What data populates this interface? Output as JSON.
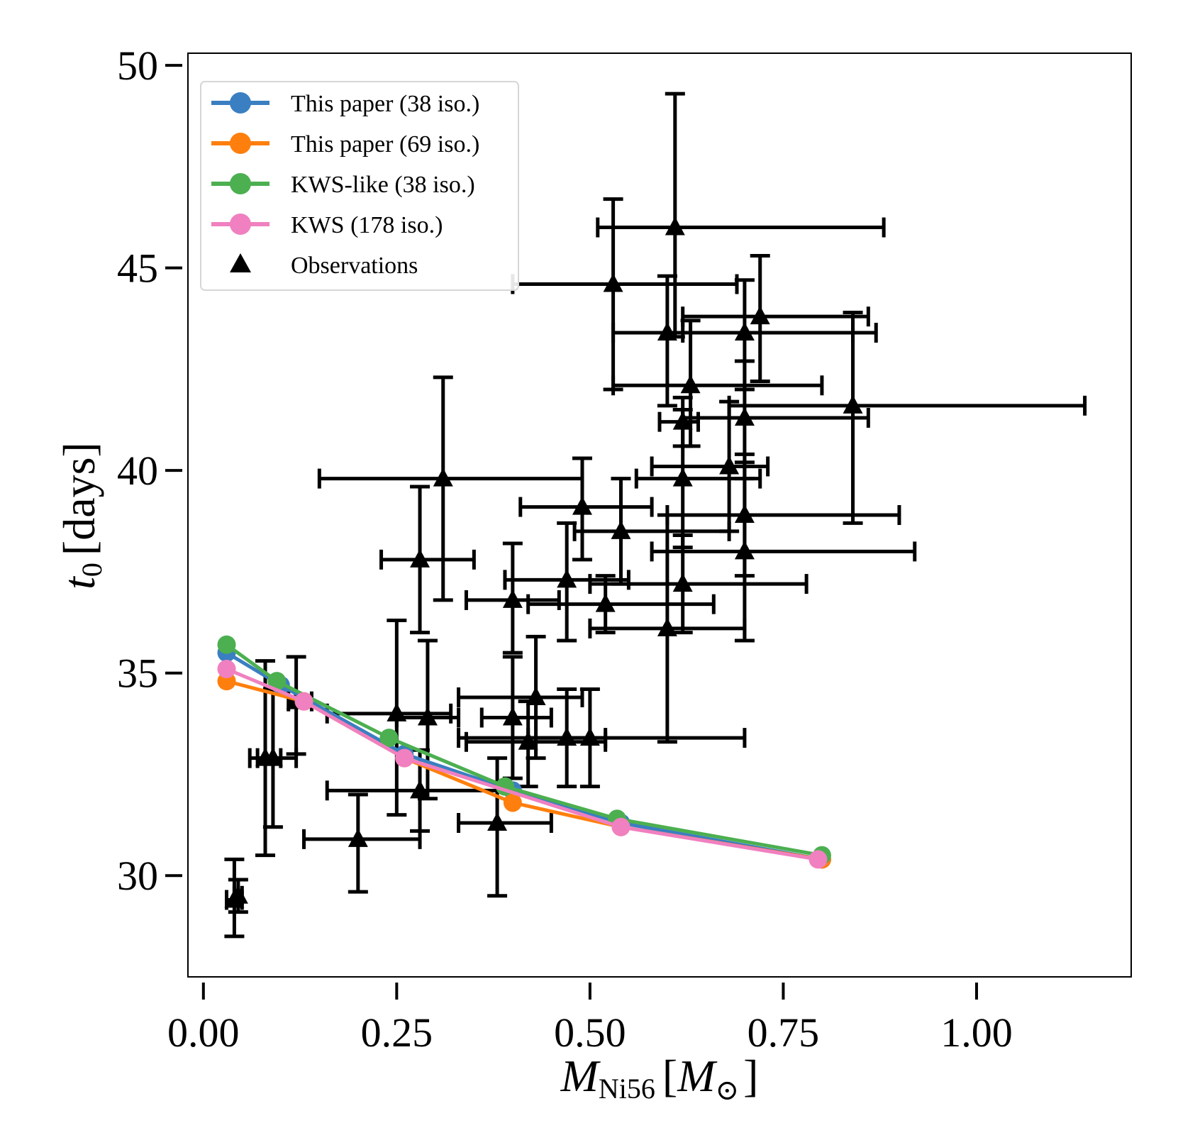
{
  "chart_data": {
    "type": "scatter",
    "xlabel": {
      "main": "M",
      "sub": "Ni56",
      "unit_main": "M",
      "unit_sub": "⊙"
    },
    "ylabel": {
      "main": "t",
      "sub": "0",
      "unit": "[days]"
    },
    "xlim": [
      -0.02,
      1.2
    ],
    "ylim": [
      27.5,
      50.3
    ],
    "xticks": [
      0.0,
      0.25,
      0.5,
      0.75,
      1.0
    ],
    "xtick_labels": [
      "0.00",
      "0.25",
      "0.50",
      "0.75",
      "1.00"
    ],
    "yticks": [
      30,
      35,
      40,
      45,
      50
    ],
    "ytick_labels": [
      "30",
      "35",
      "40",
      "45",
      "50"
    ],
    "legend_position": "top-left",
    "series": [
      {
        "name": "This paper (38 iso.)",
        "label_main": "This paper",
        "label_paren": "(38 iso.)",
        "color": "#3a7fc1",
        "x": [
          0.03,
          0.1,
          0.26,
          0.4,
          0.54,
          0.8
        ],
        "y": [
          35.5,
          34.7,
          33.0,
          32.1,
          31.3,
          30.4
        ]
      },
      {
        "name": "This paper (69 iso.)",
        "label_main": "This paper",
        "label_paren": "(69 iso.)",
        "color": "#ff7f0e",
        "x": [
          0.03,
          0.13,
          0.26,
          0.4,
          0.54,
          0.8
        ],
        "y": [
          34.8,
          34.3,
          32.9,
          31.8,
          31.2,
          30.4
        ]
      },
      {
        "name": "KWS-like (38 iso.)",
        "label_main": "KWS-like",
        "label_paren": "(38 iso.)",
        "color": "#4caf50",
        "x": [
          0.03,
          0.095,
          0.24,
          0.39,
          0.535,
          0.8
        ],
        "y": [
          35.7,
          34.8,
          33.4,
          32.2,
          31.4,
          30.5
        ]
      },
      {
        "name": "KWS (178 iso.)",
        "label_main": "KWS",
        "label_paren": "(178 iso.)",
        "color": "#f080c0",
        "x": [
          0.03,
          0.13,
          0.26,
          0.54,
          0.795
        ],
        "y": [
          35.1,
          34.3,
          32.9,
          31.2,
          30.4
        ]
      }
    ],
    "observations": {
      "name": "Observations",
      "label_main": "Observations",
      "label_paren": "",
      "color": "#000000",
      "marker": "triangle",
      "points": [
        {
          "x": 0.61,
          "y": 46.0,
          "xerr": [
            0.1,
            0.27
          ],
          "yerr": [
            2.7,
            3.3
          ]
        },
        {
          "x": 0.53,
          "y": 44.6,
          "xerr": [
            0.13,
            0.16
          ],
          "yerr": [
            2.6,
            2.1
          ]
        },
        {
          "x": 0.72,
          "y": 43.8,
          "xerr": [
            0.1,
            0.14
          ],
          "yerr": [
            1.6,
            1.5
          ]
        },
        {
          "x": 0.6,
          "y": 43.4,
          "xerr": [
            0.07,
            0.27
          ],
          "yerr": [
            1.8,
            1.4
          ]
        },
        {
          "x": 0.7,
          "y": 43.4,
          "xerr": [
            0.08,
            0.14
          ],
          "yerr": [
            1.4,
            1.3
          ]
        },
        {
          "x": 0.63,
          "y": 42.1,
          "xerr": [
            0.1,
            0.17
          ],
          "yerr": [
            1.5,
            1.6
          ]
        },
        {
          "x": 0.84,
          "y": 41.6,
          "xerr": [
            0.16,
            0.3
          ],
          "yerr": [
            2.9,
            2.3
          ]
        },
        {
          "x": 0.7,
          "y": 41.3,
          "xerr": [
            0.08,
            0.16
          ],
          "yerr": [
            1.5,
            1.4
          ]
        },
        {
          "x": 0.62,
          "y": 41.2,
          "xerr": [
            0.03,
            0.02
          ],
          "yerr": [
            0.6,
            0.6
          ]
        },
        {
          "x": 0.31,
          "y": 39.8,
          "xerr": [
            0.16,
            0.18
          ],
          "yerr": [
            3.0,
            2.5
          ]
        },
        {
          "x": 0.62,
          "y": 39.8,
          "xerr": [
            0.06,
            0.1
          ],
          "yerr": [
            1.7,
            1.7
          ]
        },
        {
          "x": 0.68,
          "y": 40.1,
          "xerr": [
            0.1,
            0.05
          ],
          "yerr": [
            1.6,
            1.6
          ]
        },
        {
          "x": 0.49,
          "y": 39.1,
          "xerr": [
            0.08,
            0.09
          ],
          "yerr": [
            1.3,
            1.2
          ]
        },
        {
          "x": 0.7,
          "y": 38.9,
          "xerr": [
            0.1,
            0.2
          ],
          "yerr": [
            1.5,
            1.5
          ]
        },
        {
          "x": 0.54,
          "y": 38.5,
          "xerr": [
            0.06,
            0.14
          ],
          "yerr": [
            1.3,
            1.3
          ]
        },
        {
          "x": 0.28,
          "y": 37.8,
          "xerr": [
            0.05,
            0.07
          ],
          "yerr": [
            1.8,
            1.8
          ]
        },
        {
          "x": 0.7,
          "y": 38.0,
          "xerr": [
            0.12,
            0.22
          ],
          "yerr": [
            2.2,
            2.2
          ]
        },
        {
          "x": 0.47,
          "y": 37.3,
          "xerr": [
            0.08,
            0.08
          ],
          "yerr": [
            1.5,
            1.4
          ]
        },
        {
          "x": 0.62,
          "y": 37.2,
          "xerr": [
            0.12,
            0.16
          ],
          "yerr": [
            1.2,
            1.2
          ]
        },
        {
          "x": 0.4,
          "y": 36.8,
          "xerr": [
            0.06,
            0.06
          ],
          "yerr": [
            1.3,
            1.4
          ]
        },
        {
          "x": 0.52,
          "y": 36.7,
          "xerr": [
            0.1,
            0.14
          ],
          "yerr": [
            0.7,
            0.7
          ]
        },
        {
          "x": 0.6,
          "y": 36.1,
          "xerr": [
            0.1,
            0.1
          ],
          "yerr": [
            2.8,
            2.8
          ]
        },
        {
          "x": 0.43,
          "y": 34.4,
          "xerr": [
            0.1,
            0.06
          ],
          "yerr": [
            1.5,
            1.5
          ]
        },
        {
          "x": 0.25,
          "y": 34.0,
          "xerr": [
            0.09,
            0.07
          ],
          "yerr": [
            2.5,
            2.3
          ]
        },
        {
          "x": 0.29,
          "y": 33.9,
          "xerr": [
            0.04,
            0.04
          ],
          "yerr": [
            2.0,
            1.9
          ]
        },
        {
          "x": 0.4,
          "y": 33.9,
          "xerr": [
            0.04,
            0.05
          ],
          "yerr": [
            1.5,
            1.5
          ]
        },
        {
          "x": 0.42,
          "y": 33.3,
          "xerr": [
            0.08,
            0.1
          ],
          "yerr": [
            1.1,
            1.0
          ]
        },
        {
          "x": 0.47,
          "y": 33.4,
          "xerr": [
            0.05,
            0.05
          ],
          "yerr": [
            1.2,
            1.2
          ]
        },
        {
          "x": 0.5,
          "y": 33.4,
          "xerr": [
            0.17,
            0.2
          ],
          "yerr": [
            1.2,
            1.2
          ]
        },
        {
          "x": 0.09,
          "y": 32.9,
          "xerr": [
            0.02,
            0.03
          ],
          "yerr": [
            1.7,
            1.7
          ]
        },
        {
          "x": 0.08,
          "y": 32.9,
          "xerr": [
            0.02,
            0.02
          ],
          "yerr": [
            2.4,
            2.4
          ]
        },
        {
          "x": 0.12,
          "y": 34.3,
          "xerr": [
            0.01,
            0.02
          ],
          "yerr": [
            1.3,
            1.1
          ]
        },
        {
          "x": 0.28,
          "y": 32.1,
          "xerr": [
            0.12,
            0.1
          ],
          "yerr": [
            1.0,
            1.0
          ]
        },
        {
          "x": 0.2,
          "y": 30.9,
          "xerr": [
            0.07,
            0.08
          ],
          "yerr": [
            1.3,
            1.1
          ]
        },
        {
          "x": 0.38,
          "y": 31.3,
          "xerr": [
            0.05,
            0.07
          ],
          "yerr": [
            1.8,
            1.6
          ]
        },
        {
          "x": 0.04,
          "y": 29.4,
          "xerr": [
            0.01,
            0.01
          ],
          "yerr": [
            0.9,
            1.0
          ]
        },
        {
          "x": 0.045,
          "y": 29.5,
          "xerr": [
            0.005,
            0.005
          ],
          "yerr": [
            0.4,
            0.4
          ]
        }
      ]
    }
  }
}
